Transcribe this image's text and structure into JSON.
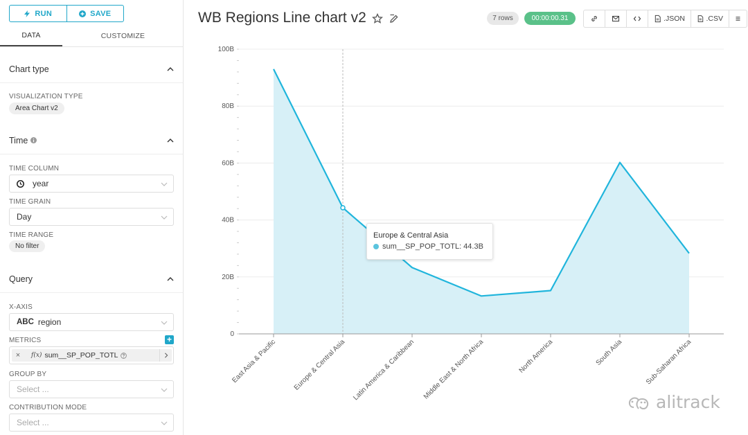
{
  "toolbar": {
    "run_label": "RUN",
    "save_label": "SAVE"
  },
  "tabs": [
    {
      "label": "DATA",
      "active": true
    },
    {
      "label": "CUSTOMIZE",
      "active": false
    }
  ],
  "sections": {
    "chart_type": {
      "title": "Chart type",
      "viz_label": "VISUALIZATION TYPE",
      "viz_value": "Area Chart v2"
    },
    "time": {
      "title": "Time",
      "time_column_label": "TIME COLUMN",
      "time_column_value": "year",
      "time_grain_label": "TIME GRAIN",
      "time_grain_value": "Day",
      "time_range_label": "TIME RANGE",
      "time_range_value": "No filter"
    },
    "query": {
      "title": "Query",
      "x_axis_label": "X-AXIS",
      "x_axis_type": "ABC",
      "x_axis_value": "region",
      "metrics_label": "METRICS",
      "metric_value": "sum__SP_POP_TOTL",
      "metric_fx": "f(x)",
      "metric_remove": "×",
      "add_metric": "+",
      "group_by_label": "GROUP BY",
      "group_by_placeholder": "Select ...",
      "contribution_label": "CONTRIBUTION MODE",
      "contribution_placeholder": "Select ..."
    }
  },
  "header": {
    "title": "WB Regions Line chart v2",
    "rows_badge": "7 rows",
    "time_badge": "00:00:00.31",
    "json_label": ".JSON",
    "csv_label": ".CSV"
  },
  "chart_data": {
    "type": "area",
    "categories": [
      "East Asia & Pacific",
      "Europe & Central Asia",
      "Latin America & Caribbean",
      "Middle East & North Africa",
      "North America",
      "South Asia",
      "Sub-Saharan Africa"
    ],
    "series": [
      {
        "name": "sum__SP_POP_TOTL",
        "values": [
          93,
          44.3,
          23.3,
          13.3,
          15.2,
          60.2,
          28.3
        ]
      }
    ],
    "y_unit": "B",
    "ylim": [
      0,
      100
    ],
    "y_ticks": [
      "0",
      "20B",
      "40B",
      "60B",
      "80B",
      "100B"
    ],
    "y_tick_values": [
      0,
      20,
      40,
      60,
      80,
      100
    ],
    "grid": true,
    "line_color": "#20b5dc",
    "fill_color": "#d7f0f7"
  },
  "tooltip": {
    "title": "Europe & Central Asia",
    "text": "sum__SP_POP_TOTL: 44.3B"
  },
  "watermark": {
    "text": "alitrack"
  }
}
